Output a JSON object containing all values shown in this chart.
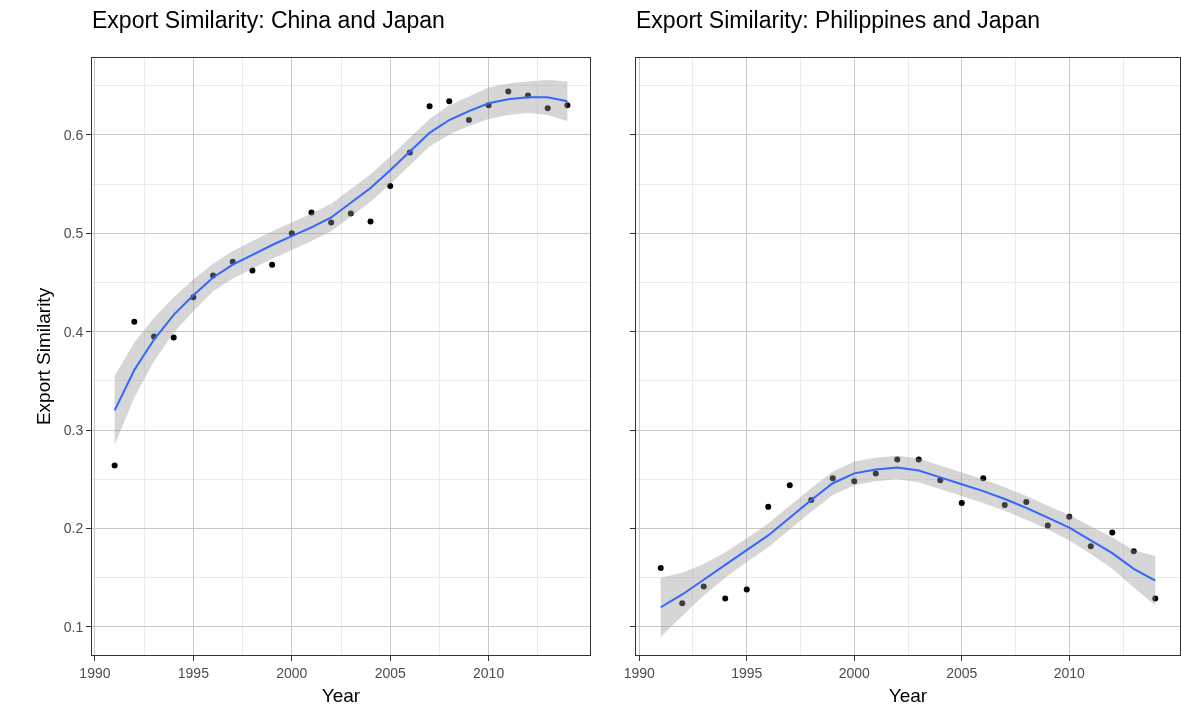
{
  "chart_data": [
    {
      "type": "scatter",
      "title": "Export Similarity: China and Japan",
      "xlabel": "Year",
      "ylabel": "Export Similarity",
      "grid": true,
      "xlim": [
        1989.85,
        2015.15
      ],
      "ylim": [
        0.0715,
        0.678
      ],
      "xticks": [
        1990,
        1995,
        2000,
        2005,
        2010
      ],
      "yticks": [
        0.1,
        0.2,
        0.3,
        0.4,
        0.5,
        0.6
      ],
      "x": [
        1991,
        1992,
        1993,
        1994,
        1995,
        1996,
        1997,
        1998,
        1999,
        2000,
        2001,
        2002,
        2003,
        2004,
        2005,
        2006,
        2007,
        2008,
        2009,
        2010,
        2011,
        2012,
        2013,
        2014
      ],
      "series": [
        {
          "marker": "circle",
          "color": "#000000",
          "values": [
            0.264,
            0.41,
            0.395,
            0.394,
            0.435,
            0.457,
            0.471,
            0.462,
            0.468,
            0.5,
            0.521,
            0.511,
            0.52,
            0.512,
            0.548,
            0.582,
            0.629,
            0.634,
            0.615,
            0.63,
            0.644,
            0.64,
            0.627,
            0.63
          ]
        },
        {
          "type": "line",
          "color": "#3366ff",
          "values": [
            0.32,
            0.361,
            0.392,
            0.417,
            0.437,
            0.455,
            0.468,
            0.478,
            0.488,
            0.497,
            0.506,
            0.516,
            0.531,
            0.546,
            0.564,
            0.583,
            0.602,
            0.615,
            0.624,
            0.632,
            0.636,
            0.638,
            0.638,
            0.634
          ],
          "lower": [
            0.285,
            0.333,
            0.37,
            0.399,
            0.421,
            0.441,
            0.454,
            0.464,
            0.474,
            0.483,
            0.492,
            0.502,
            0.517,
            0.532,
            0.55,
            0.569,
            0.588,
            0.6,
            0.609,
            0.616,
            0.62,
            0.622,
            0.62,
            0.614
          ],
          "upper": [
            0.355,
            0.389,
            0.414,
            0.435,
            0.453,
            0.469,
            0.482,
            0.492,
            0.502,
            0.511,
            0.52,
            0.53,
            0.545,
            0.56,
            0.578,
            0.597,
            0.616,
            0.63,
            0.639,
            0.648,
            0.652,
            0.654,
            0.656,
            0.654
          ]
        }
      ]
    },
    {
      "type": "scatter",
      "title": "Export Similarity: Philippines and Japan",
      "xlabel": "Year",
      "tick_labels": "x",
      "grid": true,
      "xlim": [
        1989.85,
        2015.15
      ],
      "ylim": [
        0.0715,
        0.678
      ],
      "xticks": [
        1990,
        1995,
        2000,
        2005,
        2010
      ],
      "yticks": [
        0.1,
        0.2,
        0.3,
        0.4,
        0.5,
        0.6
      ],
      "x": [
        1991,
        1992,
        1993,
        1994,
        1995,
        1996,
        1997,
        1998,
        1999,
        2000,
        2001,
        2002,
        2003,
        2004,
        2005,
        2006,
        2007,
        2008,
        2009,
        2010,
        2011,
        2012,
        2013,
        2014
      ],
      "series": [
        {
          "marker": "circle",
          "color": "#000000",
          "values": [
            0.16,
            0.124,
            0.141,
            0.129,
            0.138,
            0.222,
            0.244,
            0.229,
            0.251,
            0.248,
            0.256,
            0.27,
            0.27,
            0.249,
            0.226,
            0.251,
            0.224,
            0.227,
            0.203,
            0.212,
            0.182,
            0.196,
            0.177,
            0.129
          ]
        },
        {
          "type": "line",
          "color": "#3366ff",
          "values": [
            0.12,
            0.133,
            0.148,
            0.163,
            0.178,
            0.193,
            0.211,
            0.229,
            0.246,
            0.256,
            0.26,
            0.262,
            0.259,
            0.252,
            0.245,
            0.238,
            0.23,
            0.221,
            0.211,
            0.201,
            0.188,
            0.175,
            0.159,
            0.147
          ],
          "lower": [
            0.09,
            0.111,
            0.132,
            0.15,
            0.166,
            0.181,
            0.199,
            0.217,
            0.234,
            0.244,
            0.248,
            0.25,
            0.247,
            0.24,
            0.233,
            0.226,
            0.218,
            0.209,
            0.199,
            0.188,
            0.174,
            0.159,
            0.14,
            0.122
          ],
          "upper": [
            0.15,
            0.155,
            0.164,
            0.176,
            0.19,
            0.205,
            0.223,
            0.241,
            0.258,
            0.268,
            0.272,
            0.274,
            0.271,
            0.264,
            0.257,
            0.25,
            0.242,
            0.233,
            0.223,
            0.214,
            0.202,
            0.191,
            0.178,
            0.172
          ]
        }
      ]
    }
  ]
}
